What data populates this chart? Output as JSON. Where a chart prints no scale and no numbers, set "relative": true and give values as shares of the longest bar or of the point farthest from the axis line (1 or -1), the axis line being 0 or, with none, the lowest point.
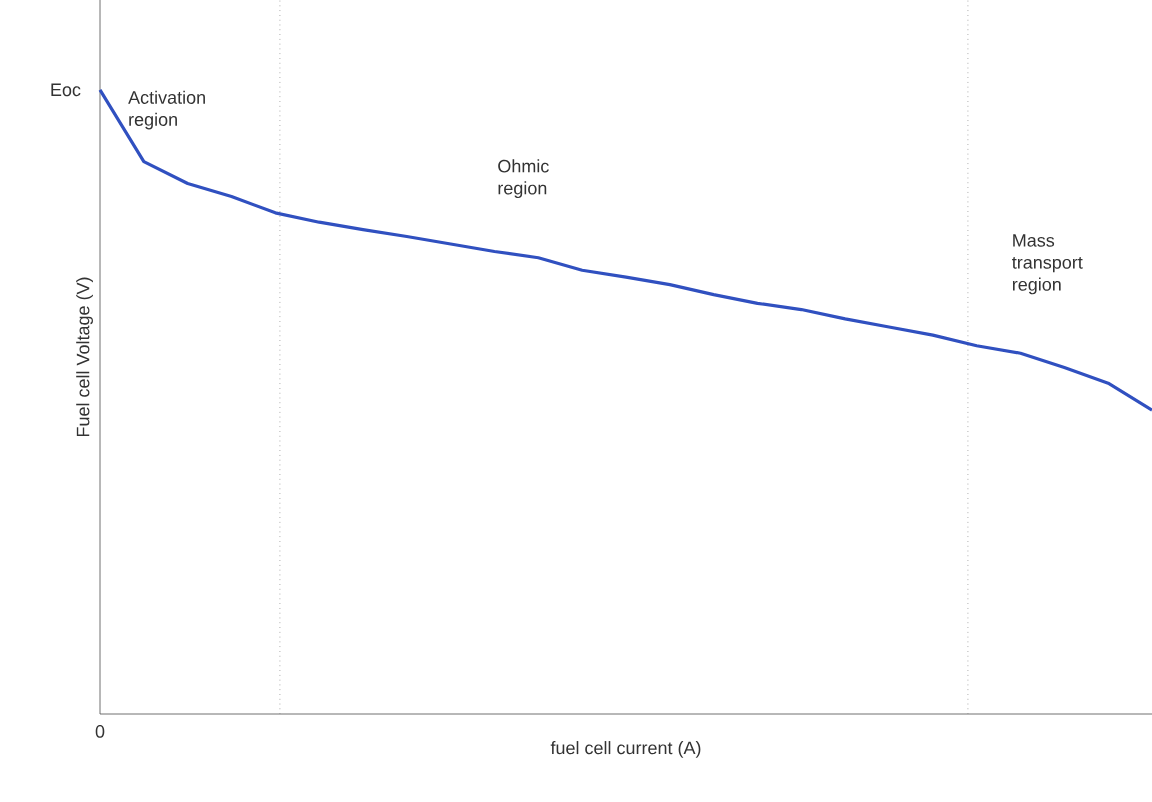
{
  "chart_data": {
    "type": "line",
    "relative": true,
    "xlabel": "fuel cell current (A)",
    "ylabel": "Fuel cell Voltage (V)",
    "line_style": "solid",
    "categories": [
      null,
      null,
      null,
      null,
      null,
      null,
      null,
      null,
      null,
      null,
      null,
      null,
      null,
      null,
      null,
      null,
      null,
      null,
      null,
      null,
      null,
      null,
      null,
      null,
      null
    ],
    "series": [
      {
        "color": "#3050c0",
        "values": [
          1.0,
          0.885,
          0.85,
          0.829,
          0.803,
          0.788,
          0.776,
          0.765,
          0.753,
          0.741,
          0.731,
          0.711,
          0.7,
          0.688,
          0.672,
          0.658,
          0.648,
          0.633,
          0.62,
          0.607,
          0.59,
          0.578,
          0.555,
          0.53,
          0.487
        ]
      }
    ],
    "annotations": [
      "Eoc",
      "0",
      "Activation region",
      "Ohmic region",
      "Mass transport region"
    ]
  }
}
